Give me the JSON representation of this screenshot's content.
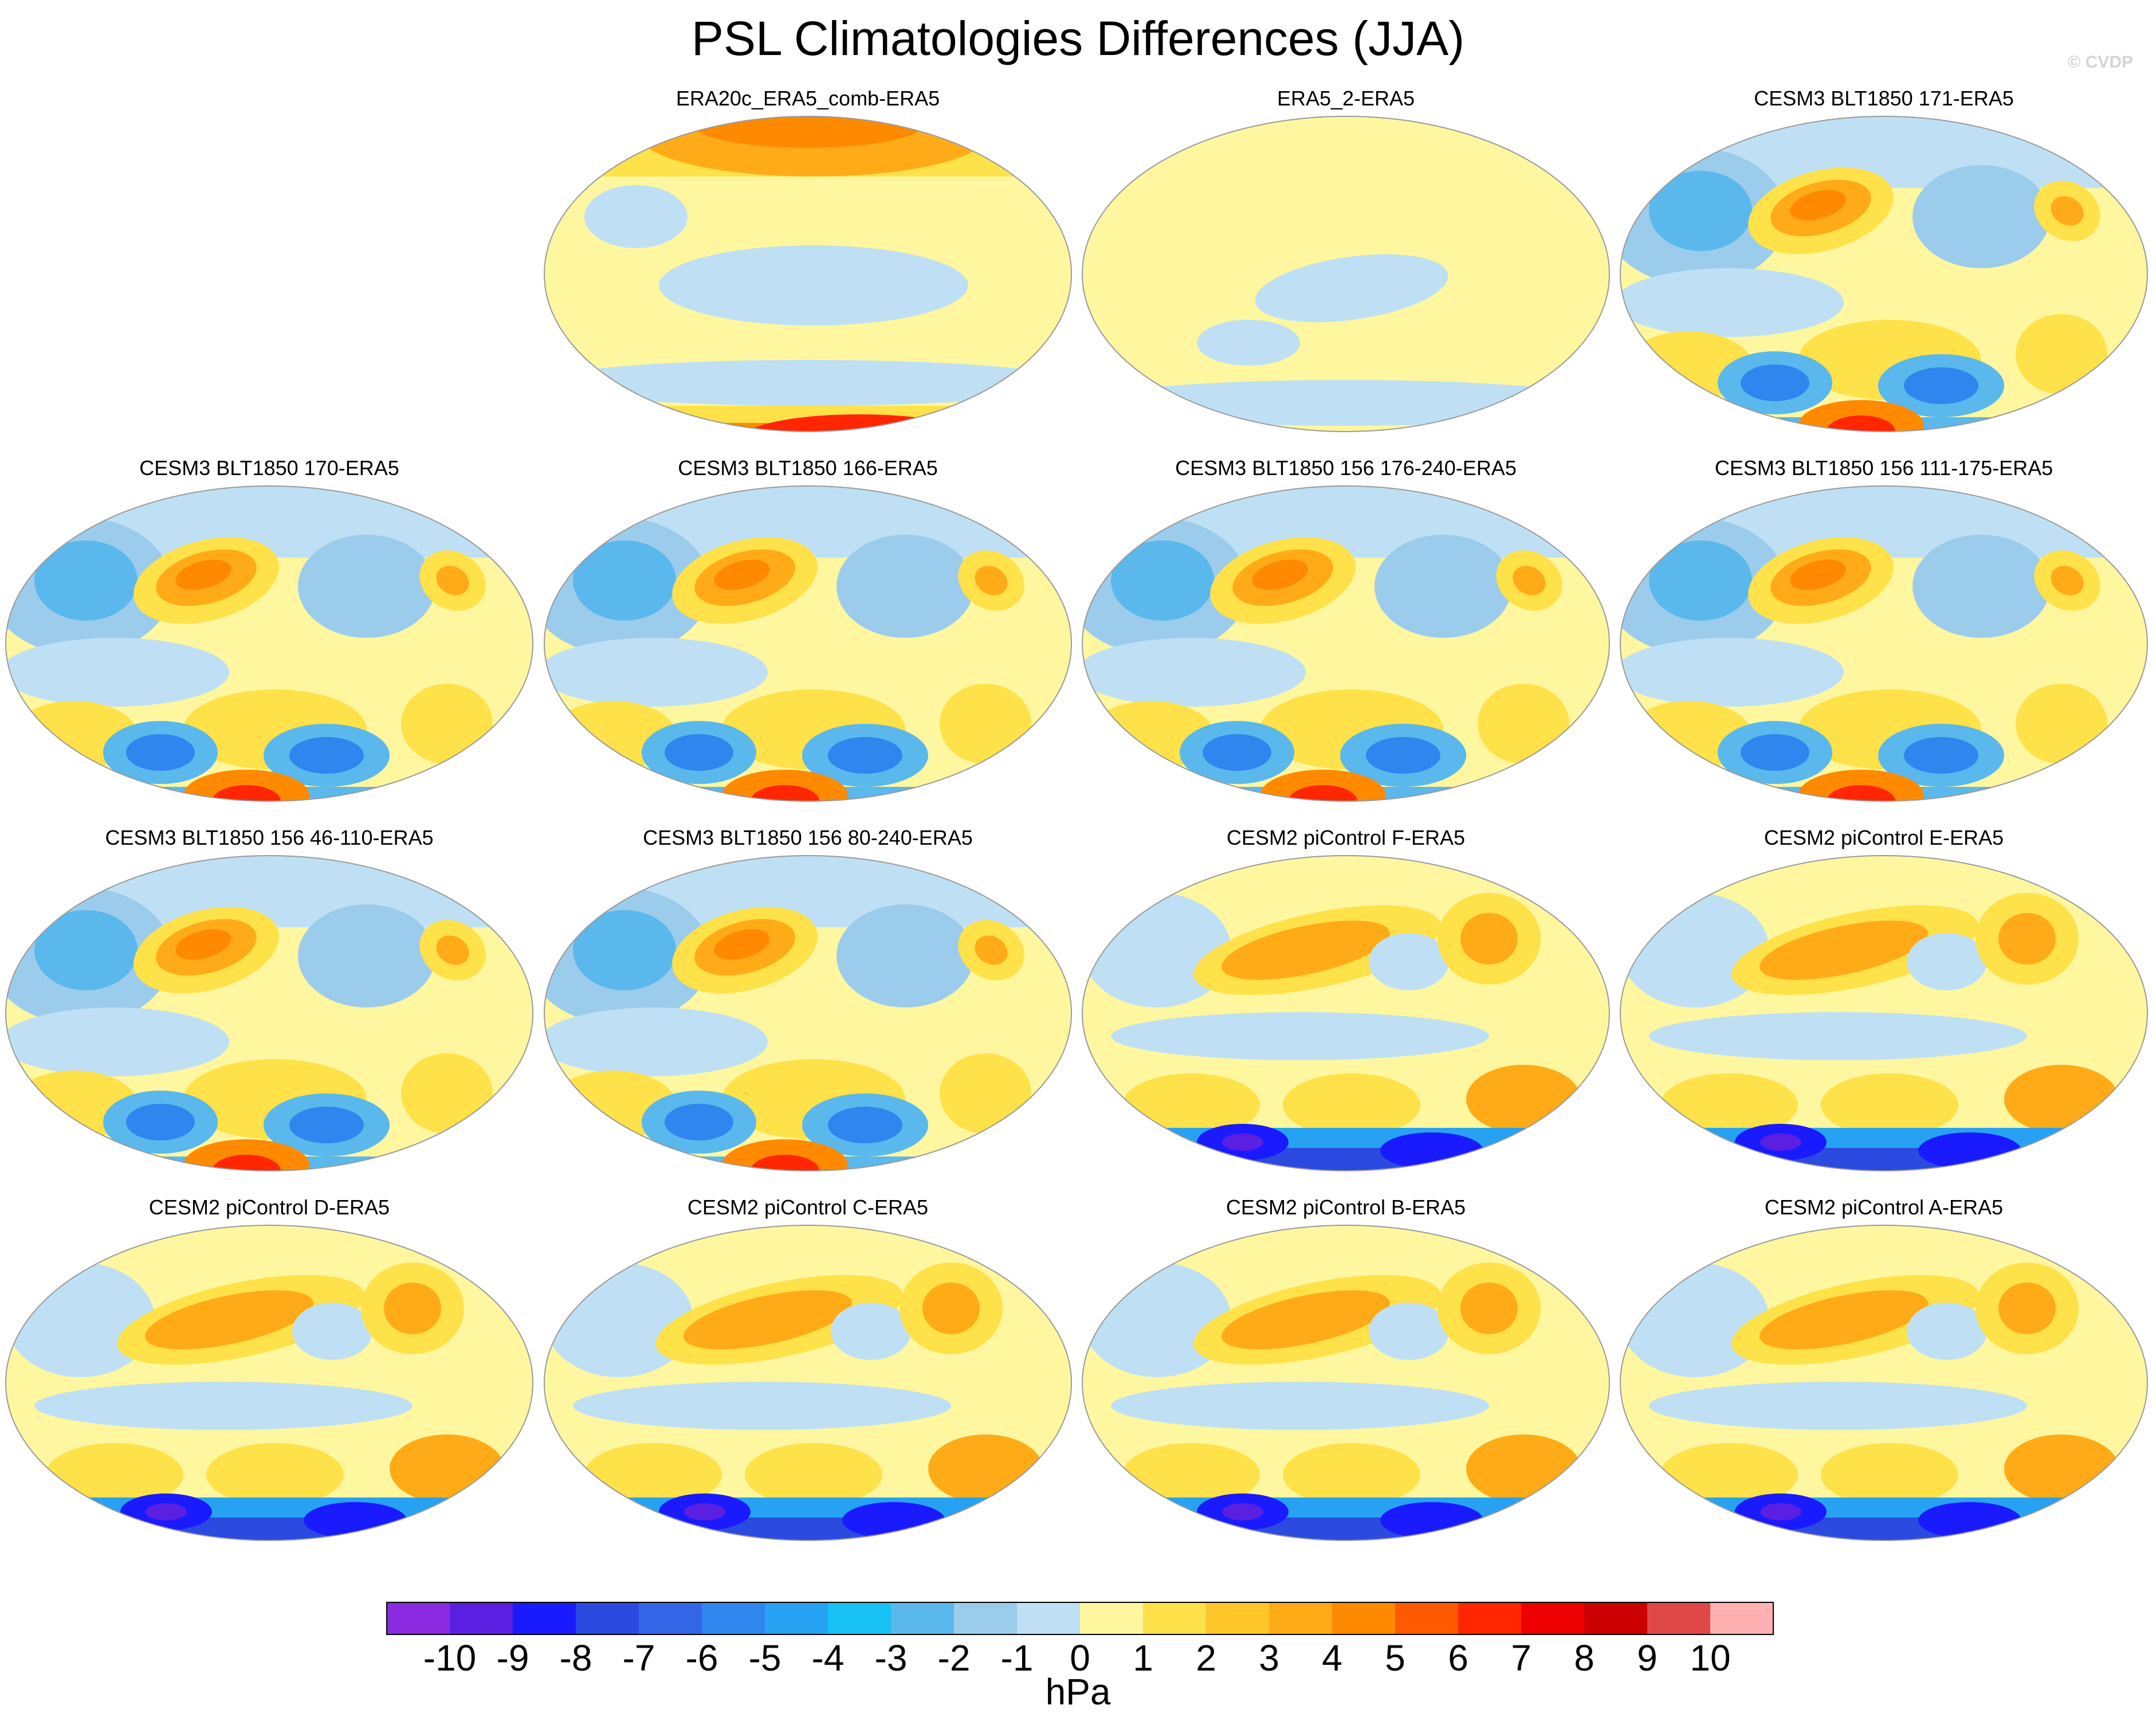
{
  "header": {
    "title": "PSL Climatologies Differences (JJA)",
    "watermark": "© CVDP"
  },
  "panels": [
    {
      "title": "ERA20c_ERA5_comb-ERA5",
      "pattern": "era20c"
    },
    {
      "title": "ERA5_2-ERA5",
      "pattern": "era5"
    },
    {
      "title": "CESM3 BLT1850 171-ERA5",
      "pattern": "cesm3"
    },
    {
      "title": "CESM3 BLT1850 170-ERA5",
      "pattern": "cesm3"
    },
    {
      "title": "CESM3 BLT1850 166-ERA5",
      "pattern": "cesm3"
    },
    {
      "title": "CESM3 BLT1850 156 176-240-ERA5",
      "pattern": "cesm3"
    },
    {
      "title": "CESM3 BLT1850 156 111-175-ERA5",
      "pattern": "cesm3"
    },
    {
      "title": "CESM3 BLT1850 156 46-110-ERA5",
      "pattern": "cesm3"
    },
    {
      "title": "CESM3 BLT1850 156 80-240-ERA5",
      "pattern": "cesm3"
    },
    {
      "title": "CESM2 piControl F-ERA5",
      "pattern": "cesm2"
    },
    {
      "title": "CESM2 piControl E-ERA5",
      "pattern": "cesm2"
    },
    {
      "title": "CESM2 piControl D-ERA5",
      "pattern": "cesm2"
    },
    {
      "title": "CESM2 piControl C-ERA5",
      "pattern": "cesm2"
    },
    {
      "title": "CESM2 piControl B-ERA5",
      "pattern": "cesm2"
    },
    {
      "title": "CESM2 piControl A-ERA5",
      "pattern": "cesm2"
    }
  ],
  "colorbar": {
    "units": "hPa",
    "tick_labels": [
      "-10",
      "-9",
      "-8",
      "-7",
      "-6",
      "-5",
      "-4",
      "-3",
      "-2",
      "-1",
      "0",
      "1",
      "2",
      "3",
      "4",
      "5",
      "6",
      "7",
      "8",
      "9",
      "10"
    ],
    "colors": [
      "#8a2be2",
      "#5a1fe0",
      "#1a1aff",
      "#2b4ae0",
      "#3366e6",
      "#2f86ee",
      "#27a2f2",
      "#19c2f4",
      "#5ab8ec",
      "#9ccceb",
      "#bfe0f4",
      "#fff7a0",
      "#ffe14a",
      "#ffc72a",
      "#ffab17",
      "#ff8a00",
      "#ff5a00",
      "#ff2600",
      "#ee0000",
      "#cc0000",
      "#e04848",
      "#ffb0b0"
    ]
  }
}
